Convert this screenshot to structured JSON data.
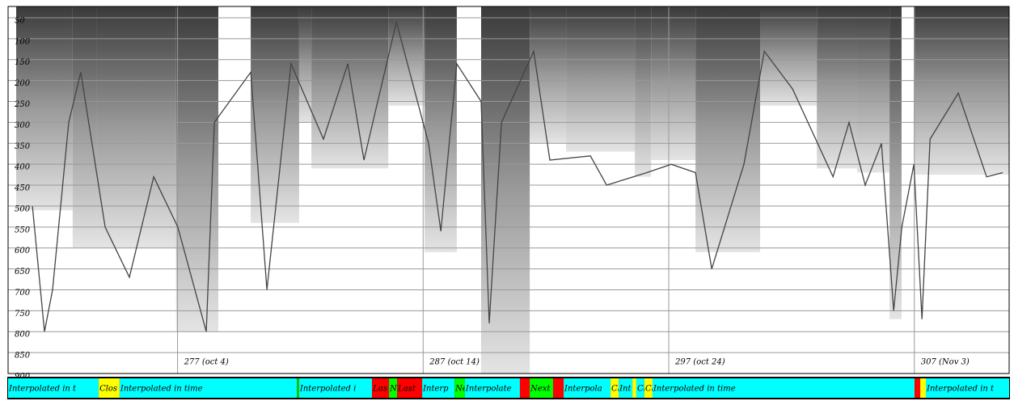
{
  "chart_data": {
    "type": "line",
    "xlim": [
      270.1,
      310.86
    ],
    "ylim": [
      900,
      23
    ],
    "xticks": [
      {
        "value": 277,
        "label": "277 (oct 4)"
      },
      {
        "value": 287,
        "label": "287 (oct 14)"
      },
      {
        "value": 297,
        "label": "297 (oct 24)"
      },
      {
        "value": 307,
        "label": "307 (Nov 3)"
      }
    ],
    "yticks": [
      50,
      100,
      150,
      200,
      250,
      300,
      350,
      400,
      450,
      500,
      550,
      600,
      650,
      700,
      750,
      800,
      850,
      900
    ],
    "grid": true,
    "columns": [
      {
        "start": 270.43,
        "end": 272.73,
        "bottom": 510
      },
      {
        "start": 272.73,
        "end": 273.72,
        "bottom": 600
      },
      {
        "start": 273.72,
        "end": 276.94,
        "bottom": 600
      },
      {
        "start": 276.94,
        "end": 278.66,
        "bottom": 800
      },
      {
        "start": 279.98,
        "end": 281.95,
        "bottom": 540
      },
      {
        "start": 281.95,
        "end": 282.45,
        "bottom": 300
      },
      {
        "start": 282.45,
        "end": 285.58,
        "bottom": 410
      },
      {
        "start": 285.58,
        "end": 287.06,
        "bottom": 260
      },
      {
        "start": 287.06,
        "end": 288.37,
        "bottom": 610
      },
      {
        "start": 289.36,
        "end": 291.34,
        "bottom": 900
      },
      {
        "start": 291.34,
        "end": 292.82,
        "bottom": 350
      },
      {
        "start": 292.82,
        "end": 295.62,
        "bottom": 370
      },
      {
        "start": 295.62,
        "end": 296.28,
        "bottom": 430
      },
      {
        "start": 296.28,
        "end": 298.09,
        "bottom": 390
      },
      {
        "start": 298.09,
        "end": 300.72,
        "bottom": 610
      },
      {
        "start": 300.72,
        "end": 303.03,
        "bottom": 260
      },
      {
        "start": 303.03,
        "end": 304.67,
        "bottom": 410
      },
      {
        "start": 304.67,
        "end": 305.99,
        "bottom": 420
      },
      {
        "start": 305.99,
        "end": 306.48,
        "bottom": 770
      },
      {
        "start": 306.98,
        "end": 310.86,
        "bottom": 425
      }
    ],
    "series": [
      {
        "color": "#444444",
        "x": [
          271.09,
          271.58,
          271.91,
          272.57,
          273.06,
          274.05,
          275.04,
          276.03,
          277.01,
          278.17,
          278.5,
          279.98,
          280.64,
          281.62,
          282.94,
          283.93,
          284.59,
          285.91,
          287.22,
          287.72,
          288.37,
          289.36,
          289.69,
          290.19,
          291.5,
          292.16,
          293.81,
          294.47,
          296.11,
          297.1,
          298.09,
          298.75,
          300.06,
          300.89,
          302.04,
          303.69,
          304.34,
          305.0,
          305.66,
          306.16,
          306.49,
          306.98,
          307.31,
          307.64,
          308.79,
          309.94,
          310.6
        ],
        "values": [
          500,
          800,
          700,
          300,
          180,
          550,
          670,
          430,
          550,
          800,
          300,
          180,
          700,
          160,
          340,
          160,
          390,
          60,
          350,
          560,
          160,
          250,
          780,
          300,
          130,
          390,
          380,
          450,
          420,
          400,
          420,
          650,
          400,
          130,
          220,
          430,
          300,
          450,
          350,
          750,
          550,
          400,
          770,
          340,
          230,
          430,
          420
        ]
      }
    ],
    "status_bar": [
      {
        "start": 270.1,
        "end": 273.79,
        "color": "#00ffff",
        "label": "Interpolated in t"
      },
      {
        "start": 273.79,
        "end": 274.64,
        "color": "#ffff00",
        "label": "Clos"
      },
      {
        "start": 274.64,
        "end": 281.86,
        "color": "#00ffff",
        "label": "Interpolated in time"
      },
      {
        "start": 281.86,
        "end": 281.95,
        "color": "#00cc00",
        "label": null
      },
      {
        "start": 281.95,
        "end": 284.92,
        "color": "#00ffff",
        "label": "Interpolated i"
      },
      {
        "start": 284.92,
        "end": 285.61,
        "color": "#ff0000",
        "label": "Las"
      },
      {
        "start": 285.61,
        "end": 285.94,
        "color": "#00ff00",
        "label": "N"
      },
      {
        "start": 285.94,
        "end": 286.96,
        "color": "#ff0000",
        "label": "Last"
      },
      {
        "start": 286.96,
        "end": 288.28,
        "color": "#00ffff",
        "label": "Interp"
      },
      {
        "start": 288.28,
        "end": 288.7,
        "color": "#00ff00",
        "label": "Ne"
      },
      {
        "start": 288.7,
        "end": 290.94,
        "color": "#00ffff",
        "label": "Interpolate"
      },
      {
        "start": 290.94,
        "end": 291.34,
        "color": "#ff0000",
        "label": null
      },
      {
        "start": 291.34,
        "end": 292.29,
        "color": "#00ff00",
        "label": "Next"
      },
      {
        "start": 292.29,
        "end": 292.72,
        "color": "#ff0000",
        "label": null
      },
      {
        "start": 292.72,
        "end": 294.63,
        "color": "#00ffff",
        "label": "Interpola"
      },
      {
        "start": 294.63,
        "end": 294.96,
        "color": "#ffff00",
        "label": "Cl"
      },
      {
        "start": 294.96,
        "end": 295.52,
        "color": "#00ffff",
        "label": "Int"
      },
      {
        "start": 295.52,
        "end": 295.68,
        "color": "#ffff00",
        "label": null
      },
      {
        "start": 295.68,
        "end": 296.01,
        "color": "#00ffff",
        "label": "Cl"
      },
      {
        "start": 296.01,
        "end": 296.34,
        "color": "#ffff00",
        "label": "Cl"
      },
      {
        "start": 296.34,
        "end": 307.01,
        "color": "#00ffff",
        "label": "Interpolated in time"
      },
      {
        "start": 307.01,
        "end": 307.24,
        "color": "#ff0000",
        "label": null
      },
      {
        "start": 307.24,
        "end": 307.47,
        "color": "#ffff00",
        "label": null
      },
      {
        "start": 307.47,
        "end": 310.86,
        "color": "#00ffff",
        "label": "Interpolated in t"
      }
    ]
  }
}
